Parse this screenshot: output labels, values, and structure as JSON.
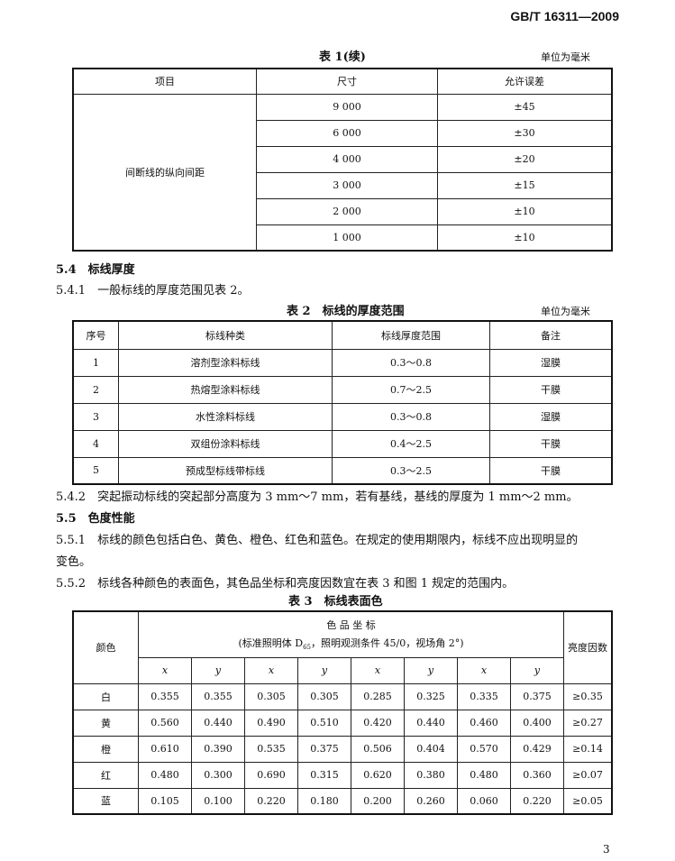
{
  "header": {
    "standard_id": "GB/T 16311—2009"
  },
  "table1": {
    "caption": "表 1(续)",
    "unit": "单位为毫米",
    "columns": [
      "项目",
      "尺寸",
      "允许误差"
    ],
    "item": "间断线的纵向间距",
    "rows": [
      {
        "size": "9 000",
        "tol": "±45"
      },
      {
        "size": "6 000",
        "tol": "±30"
      },
      {
        "size": "4 000",
        "tol": "±20"
      },
      {
        "size": "3 000",
        "tol": "±15"
      },
      {
        "size": "2 000",
        "tol": "±10"
      },
      {
        "size": "1 000",
        "tol": "±10"
      }
    ]
  },
  "sections": {
    "s54": "5.4　标线厚度",
    "s541": "5.4.1　一般标线的厚度范围见表 2。",
    "s542": "5.4.2　突起振动标线的突起部分高度为 3 mm～7 mm，若有基线，基线的厚度为 1 mm～2 mm。",
    "s55": "5.5　色度性能",
    "s551a": "5.5.1　标线的颜色包括白色、黄色、橙色、红色和蓝色。在规定的使用期限内，标线不应出现明显的",
    "s551b": "变色。",
    "s552": "5.5.2　标线各种颜色的表面色，其色品坐标和亮度因数宜在表 3 和图 1 规定的范围内。"
  },
  "table2": {
    "caption": "表 2　标线的厚度范围",
    "unit": "单位为毫米",
    "columns": [
      "序号",
      "标线种类",
      "标线厚度范围",
      "备注"
    ],
    "rows": [
      [
        "1",
        "溶剂型涂料标线",
        "0.3～0.8",
        "湿膜"
      ],
      [
        "2",
        "热熔型涂料标线",
        "0.7～2.5",
        "干膜"
      ],
      [
        "3",
        "水性涂料标线",
        "0.3～0.8",
        "湿膜"
      ],
      [
        "4",
        "双组份涂料标线",
        "0.4～2.5",
        "干膜"
      ],
      [
        "5",
        "预成型标线带标线",
        "0.3～2.5",
        "干膜"
      ]
    ]
  },
  "table3": {
    "caption": "表 3　标线表面色",
    "col_color": "颜色",
    "group_title": "色 品 坐 标",
    "group_sub_a": "(标准照明体 D",
    "group_sub_sub": "65",
    "group_sub_b": "，照明观测条件 45/0，视场角 2°)",
    "col_lum": "亮度因数",
    "xy": [
      "x",
      "y",
      "x",
      "y",
      "x",
      "y",
      "x",
      "y"
    ],
    "rows": [
      {
        "color": "白",
        "vals": [
          "0.355",
          "0.355",
          "0.305",
          "0.305",
          "0.285",
          "0.325",
          "0.335",
          "0.375"
        ],
        "lum": "≥0.35"
      },
      {
        "color": "黄",
        "vals": [
          "0.560",
          "0.440",
          "0.490",
          "0.510",
          "0.420",
          "0.440",
          "0.460",
          "0.400"
        ],
        "lum": "≥0.27"
      },
      {
        "color": "橙",
        "vals": [
          "0.610",
          "0.390",
          "0.535",
          "0.375",
          "0.506",
          "0.404",
          "0.570",
          "0.429"
        ],
        "lum": "≥0.14"
      },
      {
        "color": "红",
        "vals": [
          "0.480",
          "0.300",
          "0.690",
          "0.315",
          "0.620",
          "0.380",
          "0.480",
          "0.360"
        ],
        "lum": "≥0.07"
      },
      {
        "color": "蓝",
        "vals": [
          "0.105",
          "0.100",
          "0.220",
          "0.180",
          "0.200",
          "0.260",
          "0.060",
          "0.220"
        ],
        "lum": "≥0.05"
      }
    ]
  },
  "footer": {
    "page_number": "3"
  }
}
